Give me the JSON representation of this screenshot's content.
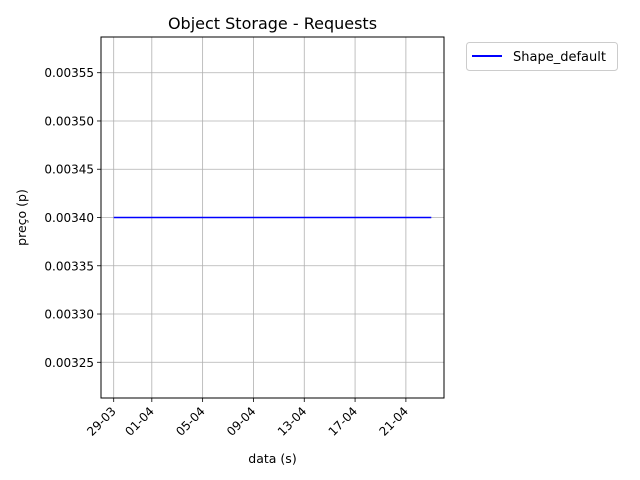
{
  "chart_data": {
    "type": "line",
    "title": "Object Storage - Requests",
    "xlabel": "data (s)",
    "ylabel": "preço (p)",
    "x_tick_labels": [
      {
        "date": "2023-03-29",
        "label": "29-03"
      },
      {
        "date": "2023-04-01",
        "label": "01-04"
      },
      {
        "date": "2023-04-05",
        "label": "05-04"
      },
      {
        "date": "2023-04-09",
        "label": "09-04"
      },
      {
        "date": "2023-04-13",
        "label": "13-04"
      },
      {
        "date": "2023-04-17",
        "label": "17-04"
      },
      {
        "date": "2023-04-21",
        "label": "21-04"
      }
    ],
    "y_ticks": [
      0.00325,
      0.0033,
      0.00335,
      0.0034,
      0.00345,
      0.0035,
      0.00355
    ],
    "y_tick_labels": [
      "0.00325",
      "0.00330",
      "0.00335",
      "0.00340",
      "0.00345",
      "0.00350",
      "0.00355"
    ],
    "xlim": [
      "2023-03-28",
      "2023-04-24"
    ],
    "ylim": [
      0.003213,
      0.003587
    ],
    "grid": true,
    "legend_position": "outside-top-right",
    "series": [
      {
        "name": "Shape_default",
        "color": "#0000ff",
        "x": [
          "2023-03-29",
          "2023-04-23"
        ],
        "y": [
          0.0034,
          0.0034
        ]
      }
    ]
  }
}
